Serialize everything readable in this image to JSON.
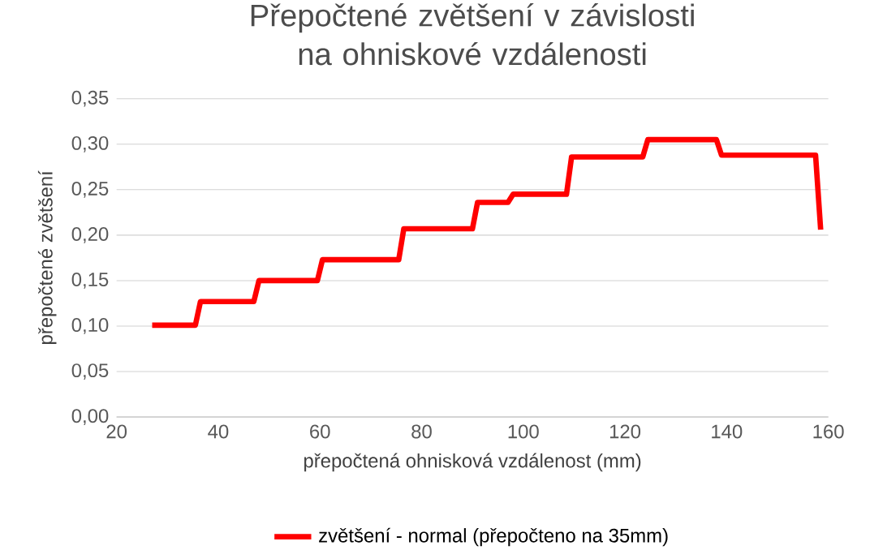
{
  "chart_data": {
    "type": "line",
    "title": "Přepočtené zvětšení v závislosti na ohniskové vzdálenosti",
    "xlabel": "přepočtená ohnisková vzdálenost (mm)",
    "ylabel": "přepočtené zvětšení",
    "series": [
      {
        "name": "zvětšení - normal (přepočteno na 35mm)",
        "color": "#ff0000",
        "x": [
          27,
          35.5,
          36.5,
          47,
          48,
          59.5,
          60.5,
          75.5,
          76.5,
          90,
          91,
          97,
          98,
          108.5,
          109.5,
          123.5,
          124.5,
          138,
          139,
          157.5,
          158.5
        ],
        "values": [
          0.101,
          0.101,
          0.127,
          0.127,
          0.15,
          0.15,
          0.173,
          0.173,
          0.207,
          0.207,
          0.236,
          0.236,
          0.245,
          0.245,
          0.286,
          0.286,
          0.305,
          0.305,
          0.288,
          0.288,
          0.206
        ]
      }
    ],
    "xlim": [
      20,
      160
    ],
    "xticks": [
      20,
      40,
      60,
      80,
      100,
      120,
      140,
      160
    ],
    "ylim": [
      0,
      0.35
    ],
    "yticks": [
      {
        "value": 0,
        "label": "0,00"
      },
      {
        "value": 0.05,
        "label": "0,05"
      },
      {
        "value": 0.1,
        "label": "0,10"
      },
      {
        "value": 0.15,
        "label": "0,15"
      },
      {
        "value": 0.2,
        "label": "0,20"
      },
      {
        "value": 0.25,
        "label": "0,25"
      },
      {
        "value": 0.3,
        "label": "0,30"
      },
      {
        "value": 0.35,
        "label": "0,35"
      }
    ],
    "grid": "y",
    "legend": "bottom",
    "marker": "none",
    "line_style": "solid"
  }
}
